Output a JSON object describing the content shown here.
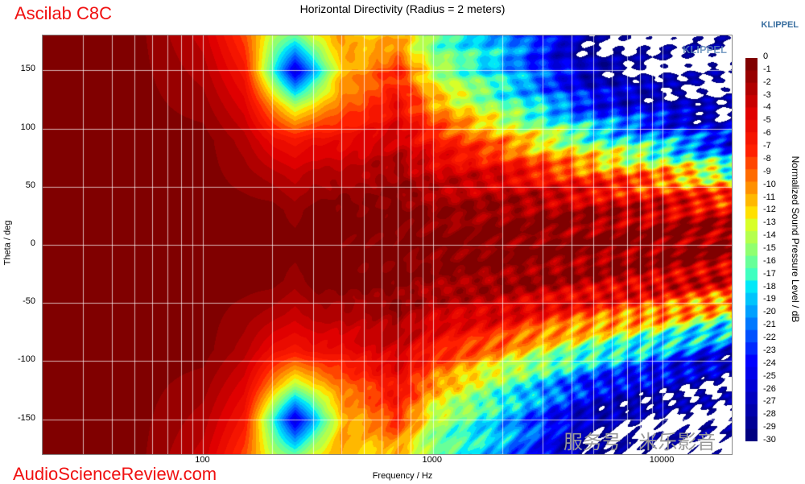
{
  "brand": "Ascilab C8C",
  "footer_site": "AudioScienceReview.com",
  "klippel_label": "KLIPPEL",
  "watermark": "服务号 · 米乐影音",
  "chart_data": {
    "type": "heatmap",
    "title": "Horizontal Directivity (Radius = 2 meters)",
    "xlabel": "Frequency / Hz",
    "ylabel": "Theta / deg",
    "colorbar_label": "Normalized Sound Pressure Level / dB",
    "x_scale": "log",
    "xlim": [
      20,
      20000
    ],
    "ylim": [
      -180,
      180
    ],
    "clim": [
      -30,
      0
    ],
    "grid": true,
    "x_ticks": [
      "100",
      "1000",
      "10000"
    ],
    "y_ticks": [
      "150",
      "100",
      "50",
      "0",
      "-50",
      "-100",
      "-150"
    ],
    "colorbar_ticks": [
      "0",
      "-1",
      "-2",
      "-3",
      "-4",
      "-5",
      "-6",
      "-7",
      "-8",
      "-9",
      "-10",
      "-11",
      "-12",
      "-13",
      "-14",
      "-15",
      "-16",
      "-17",
      "-18",
      "-19",
      "-20",
      "-21",
      "-22",
      "-23",
      "-24",
      "-25",
      "-26",
      "-27",
      "-28",
      "-29",
      "-30"
    ],
    "colormap": [
      "#800000",
      "#e00000",
      "#ff2000",
      "#ff9000",
      "#ffe000",
      "#d8ff28",
      "#90ff70",
      "#40ffc0",
      "#00e8f8",
      "#00a0ff",
      "#0050ff",
      "#0000ff",
      "#0000c0",
      "#000080"
    ],
    "frequencies_hz": [
      20,
      50,
      100,
      150,
      200,
      250,
      300,
      400,
      500,
      700,
      1000,
      2000,
      3000,
      5000,
      10000,
      20000
    ],
    "angles_deg": [
      -180,
      -150,
      -120,
      -90,
      -60,
      -30,
      0,
      30,
      60,
      90,
      120,
      150,
      180
    ],
    "spl_db": [
      [
        0,
        0,
        0,
        0,
        0,
        0,
        0,
        0,
        0,
        0,
        0,
        0,
        0
      ],
      [
        0,
        0,
        0,
        0,
        0,
        0,
        0,
        0,
        0,
        0,
        0,
        0,
        0
      ],
      [
        -3,
        -2,
        -1,
        0,
        0,
        0,
        0,
        0,
        0,
        0,
        -1,
        -2,
        -3
      ],
      [
        -8,
        -6,
        -4,
        -2,
        -1,
        0,
        0,
        0,
        -1,
        -2,
        -4,
        -6,
        -8
      ],
      [
        -14,
        -17,
        -10,
        -5,
        -2,
        0,
        0,
        0,
        -2,
        -5,
        -10,
        -17,
        -14
      ],
      [
        -16,
        -26,
        -14,
        -6,
        -3,
        -1,
        0,
        -1,
        -3,
        -6,
        -14,
        -26,
        -16
      ],
      [
        -13,
        -20,
        -12,
        -5,
        -2,
        0,
        0,
        0,
        -2,
        -5,
        -12,
        -20,
        -13
      ],
      [
        -10,
        -11,
        -9,
        -5,
        -2,
        0,
        0,
        0,
        -2,
        -5,
        -9,
        -11,
        -10
      ],
      [
        -12,
        -10,
        -8,
        -4,
        -2,
        0,
        0,
        0,
        -2,
        -4,
        -8,
        -10,
        -12
      ],
      [
        -11,
        -7,
        -5,
        -3,
        -1,
        0,
        0,
        0,
        -1,
        -3,
        -5,
        -7,
        -11
      ],
      [
        -16,
        -14,
        -10,
        -6,
        -3,
        -1,
        0,
        -1,
        -3,
        -6,
        -10,
        -14,
        -16
      ],
      [
        -20,
        -19,
        -16,
        -10,
        -4,
        -1,
        0,
        -1,
        -4,
        -10,
        -16,
        -19,
        -20
      ],
      [
        -24,
        -23,
        -19,
        -13,
        -6,
        -1,
        0,
        -1,
        -6,
        -13,
        -19,
        -23,
        -24
      ],
      [
        -31,
        -28,
        -24,
        -16,
        -8,
        -2,
        0,
        -2,
        -8,
        -16,
        -24,
        -28,
        -31
      ],
      [
        -32,
        -31,
        -27,
        -20,
        -10,
        -3,
        0,
        -3,
        -10,
        -20,
        -27,
        -31,
        -32
      ],
      [
        -32,
        -32,
        -31,
        -25,
        -14,
        -4,
        0,
        -4,
        -14,
        -25,
        -31,
        -32,
        -32
      ]
    ]
  }
}
